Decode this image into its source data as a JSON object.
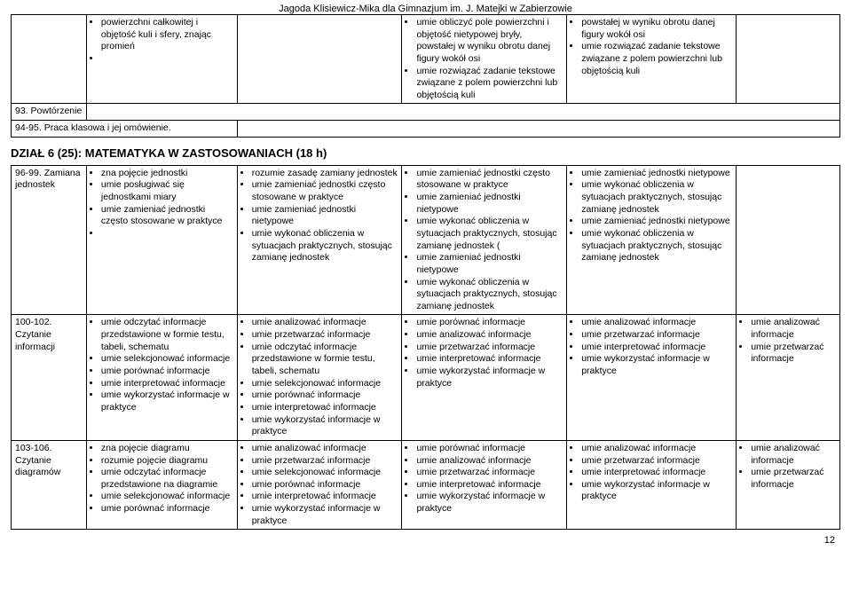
{
  "header": "Jagoda Klisiewicz-Mika dla Gimnazjum im. J. Matejki w Zabierzowie",
  "rows_top": {
    "r1": {
      "c1": "",
      "c2_items": [
        "powierzchni całkowitej i objętość kuli i sfery, znając promień",
        ""
      ],
      "c3": "",
      "c4_items": [
        "umie obliczyć pole powierzchni i objętość nietypowej bryły, powstałej w wyniku obrotu danej figury wokół osi",
        "umie rozwiązać zadanie tekstowe związane z polem powierzchni lub objętością kuli"
      ],
      "c5_items": [
        "powstałej w wyniku obrotu danej figury wokół osi",
        "umie rozwiązać zadanie tekstowe związane z polem powierzchni lub objętością kuli"
      ],
      "c6": ""
    },
    "r2_c1": "93. Powtórzenie",
    "r3_c1": "94-95. Praca klasowa i jej omówienie."
  },
  "section_title": "DZIAŁ 6 (25): MATEMATYKA W ZASTOSOWANIACH (18 h)",
  "rows_bottom": {
    "row1": {
      "c1": "96-99. Zamiana jednostek",
      "c2_items": [
        "zna pojęcie jednostki",
        "umie posługiwać się jednostkami miary",
        "umie zamieniać jednostki często stosowane w praktyce",
        ""
      ],
      "c3_items": [
        "rozumie zasadę zamiany jednostek",
        "umie zamieniać jednostki często stosowane w praktyce",
        "umie zamieniać jednostki nietypowe",
        "umie wykonać obliczenia w sytuacjach praktycznych, stosując zamianę jednostek"
      ],
      "c4_items": [
        "umie zamieniać jednostki często stosowane w praktyce",
        "umie zamieniać jednostki nietypowe",
        "umie wykonać obliczenia w sytuacjach praktycznych, stosując zamianę jednostek (",
        "umie zamieniać jednostki nietypowe",
        "umie wykonać obliczenia w sytuacjach praktycznych, stosując zamianę jednostek"
      ],
      "c5_items": [
        "umie zamieniać jednostki nietypowe",
        "umie wykonać obliczenia w sytuacjach praktycznych, stosując zamianę jednostek",
        "umie zamieniać jednostki nietypowe",
        "umie wykonać obliczenia w sytuacjach praktycznych, stosując zamianę jednostek"
      ],
      "c6": ""
    },
    "row2": {
      "c1": "100-102. Czytanie informacji",
      "c2_items": [
        "umie odczytać informacje przedstawione w formie testu, tabeli, schematu",
        "umie selekcjonować informacje",
        "umie porównać informacje",
        "umie interpretować informacje",
        "umie wykorzystać informacje w praktyce"
      ],
      "c3_items": [
        "umie analizować informacje",
        "umie przetwarzać informacje",
        "umie odczytać informacje przedstawione w formie testu, tabeli, schematu",
        "umie selekcjonować informacje",
        "umie porównać informacje",
        "umie interpretować informacje",
        "umie wykorzystać informacje w praktyce"
      ],
      "c4_items": [
        "umie porównać informacje",
        "umie analizować informacje",
        "umie przetwarzać informacje",
        "umie interpretować informacje",
        "umie wykorzystać informacje w praktyce"
      ],
      "c5_items": [
        "umie analizować informacje",
        "umie przetwarzać informacje",
        "umie interpretować informacje",
        "umie wykorzystać informacje w praktyce"
      ],
      "c6_items": [
        "umie analizować informacje",
        "umie przetwarzać informacje"
      ]
    },
    "row3": {
      "c1": "103-106. Czytanie diagramów",
      "c2_items": [
        "zna pojęcie diagramu",
        "rozumie pojęcie diagramu",
        "umie odczytać informacje przedstawione na diagramie",
        "umie selekcjonować informacje",
        "umie porównać informacje"
      ],
      "c3_items": [
        "umie analizować informacje",
        "umie przetwarzać informacje",
        "umie selekcjonować informacje",
        "umie porównać informacje",
        "umie interpretować informacje",
        "umie wykorzystać informacje w praktyce"
      ],
      "c4_items": [
        "umie porównać informacje",
        "umie analizować informacje",
        "umie przetwarzać informacje",
        "umie interpretować informacje",
        "umie wykorzystać informacje w praktyce"
      ],
      "c5_items": [
        "umie analizować informacje",
        "umie przetwarzać informacje",
        "umie interpretować informacje",
        "umie wykorzystać informacje w praktyce"
      ],
      "c6_items": [
        "umie analizować informacje",
        "umie przetwarzać informacje"
      ]
    }
  },
  "page_num": "12"
}
